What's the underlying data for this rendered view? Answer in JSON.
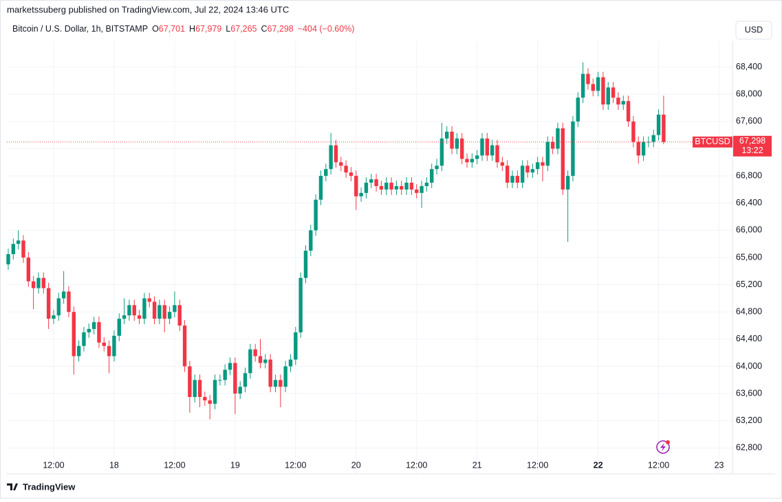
{
  "header": {
    "published": "marketssuberg published on TradingView.com, Jul 22, 2024 13:46 UTC",
    "symbol": "Bitcoin / U.S. Dollar, 1h, BITSTAMP",
    "legend": [
      {
        "key": "O",
        "value": "67,701"
      },
      {
        "key": "H",
        "value": "67,979"
      },
      {
        "key": "L",
        "value": "67,265"
      },
      {
        "key": "C",
        "value": "67,298"
      }
    ],
    "change": "−404 (−0.60%)",
    "currency": "USD"
  },
  "price_tag": {
    "symbol": "BTCUSD",
    "price": "67,298",
    "countdown": "13:22"
  },
  "footer": "TradingView",
  "chart_data": {
    "type": "candlestick",
    "up_color": "#089981",
    "down_color": "#f23645",
    "categories": [
      null,
      null,
      null,
      null,
      null,
      null,
      null,
      null,
      null,
      "12:00",
      null,
      null,
      null,
      null,
      null,
      null,
      null,
      null,
      null,
      null,
      null,
      "18",
      null,
      null,
      null,
      null,
      null,
      null,
      null,
      null,
      null,
      null,
      null,
      "12:00",
      null,
      null,
      null,
      null,
      null,
      null,
      null,
      null,
      null,
      null,
      null,
      "19",
      null,
      null,
      null,
      null,
      null,
      null,
      null,
      null,
      null,
      null,
      null,
      "12:00",
      null,
      null,
      null,
      null,
      null,
      null,
      null,
      null,
      null,
      null,
      null,
      "20",
      null,
      null,
      null,
      null,
      null,
      null,
      null,
      null,
      null,
      null,
      null,
      "12:00",
      null,
      null,
      null,
      null,
      null,
      null,
      null,
      null,
      null,
      null,
      null,
      "21",
      null,
      null,
      null,
      null,
      null,
      null,
      null,
      null,
      null,
      null,
      null,
      "12:00",
      null,
      null,
      null,
      null,
      null,
      null,
      null,
      null,
      null,
      null,
      null,
      "22",
      null,
      null,
      null,
      null,
      null,
      null,
      null,
      null,
      null,
      null,
      null,
      "12:00",
      null,
      null,
      null,
      null,
      null,
      null,
      null,
      null,
      null,
      null,
      null,
      "23"
    ],
    "open": [
      65500,
      65650,
      65800,
      65850,
      65600,
      65250,
      65150,
      65300,
      65150,
      64700,
      64750,
      65000,
      65100,
      64800,
      64150,
      64300,
      64500,
      64550,
      64650,
      64350,
      64300,
      64150,
      64450,
      64700,
      64750,
      64900,
      64750,
      64700,
      65000,
      64950,
      64700,
      64900,
      64700,
      64800,
      64900,
      64600,
      64000,
      63550,
      63800,
      63550,
      63500,
      63450,
      63800,
      63800,
      63950,
      64050,
      63600,
      63700,
      63900,
      64250,
      64150,
      64050,
      64100,
      63700,
      63800,
      63700,
      64000,
      64100,
      64500,
      65300,
      65700,
      66000,
      66450,
      66800,
      66900,
      67250,
      67000,
      66950,
      66850,
      66800,
      66500,
      66550,
      66700,
      66750,
      66650,
      66600,
      66700,
      66600,
      66650,
      66600,
      66700,
      66600,
      66550,
      66650,
      66700,
      66900,
      66950,
      67350,
      67450,
      67200,
      67350,
      67050,
      67000,
      67050,
      67100,
      67350,
      67100,
      67250,
      67000,
      66950,
      66700,
      66800,
      66700,
      66950,
      66850,
      66900,
      67000,
      66950,
      67300,
      67200,
      67500,
      66600,
      66800,
      67600,
      67950,
      68300,
      68150,
      68050,
      68250,
      67850,
      68100,
      67950,
      67850,
      67900,
      67600,
      67300,
      67100,
      67300,
      67300,
      67400,
      67701,
      null,
      null,
      null,
      null,
      null,
      null,
      null,
      null,
      null,
      null,
      null
    ],
    "high": [
      65730,
      65880,
      66000,
      65930,
      65680,
      65330,
      65380,
      65380,
      65230,
      64830,
      65080,
      65400,
      65180,
      64880,
      64380,
      64580,
      64630,
      64730,
      64730,
      64430,
      64380,
      64530,
      64780,
      65000,
      64980,
      64980,
      64830,
      65080,
      65080,
      65030,
      64980,
      64980,
      64880,
      65100,
      64980,
      64680,
      64080,
      63880,
      63880,
      63630,
      63580,
      63880,
      63880,
      64030,
      64130,
      64130,
      63780,
      63980,
      64330,
      64330,
      64400,
      64180,
      64180,
      63880,
      63880,
      64080,
      64180,
      64580,
      65380,
      65780,
      66080,
      66530,
      66880,
      66980,
      67430,
      67330,
      67080,
      67030,
      66930,
      66880,
      66630,
      66780,
      66830,
      66830,
      66730,
      66780,
      66780,
      66730,
      66730,
      66780,
      66780,
      66680,
      66730,
      66780,
      66980,
      67050,
      67580,
      67530,
      67530,
      67430,
      67430,
      67130,
      67130,
      67180,
      67430,
      67430,
      67330,
      67330,
      67080,
      67030,
      66880,
      66880,
      67030,
      67030,
      66980,
      67080,
      67080,
      67380,
      67380,
      67580,
      67580,
      66880,
      67680,
      68030,
      68470,
      68380,
      68230,
      68330,
      68330,
      68180,
      68180,
      68030,
      67980,
      67980,
      67680,
      67380,
      67380,
      67380,
      67480,
      67780,
      67979,
      null,
      null,
      null,
      null,
      null,
      null,
      null,
      null,
      null,
      null,
      null
    ],
    "low": [
      65420,
      65570,
      65720,
      65520,
      65170,
      64840,
      65070,
      65070,
      64550,
      64620,
      64670,
      64920,
      64720,
      63880,
      64070,
      64220,
      64420,
      64470,
      64270,
      64220,
      63900,
      64070,
      64370,
      64620,
      64670,
      64670,
      64620,
      64620,
      64870,
      64620,
      64620,
      64500,
      64620,
      64720,
      64520,
      63920,
      63320,
      63470,
      63400,
      63420,
      63220,
      63370,
      63720,
      63720,
      63870,
      63300,
      63520,
      63620,
      63820,
      64070,
      63970,
      63970,
      63620,
      63620,
      63400,
      63620,
      63920,
      64020,
      64420,
      65220,
      65620,
      65920,
      66370,
      66720,
      66820,
      66920,
      66870,
      66770,
      66720,
      66300,
      66420,
      66470,
      66620,
      66570,
      66520,
      66520,
      66520,
      66520,
      66520,
      66520,
      66520,
      66470,
      66330,
      66570,
      66620,
      66820,
      66870,
      67270,
      67120,
      67120,
      66970,
      66920,
      66920,
      66970,
      67020,
      67020,
      67020,
      66920,
      66870,
      66620,
      66620,
      66620,
      66620,
      66770,
      66770,
      66820,
      66720,
      66870,
      67120,
      67120,
      66520,
      65830,
      66720,
      67520,
      67870,
      68070,
      67970,
      67970,
      67770,
      67770,
      67870,
      67770,
      67770,
      67520,
      67220,
      66980,
      67020,
      67220,
      67220,
      67320,
      67265,
      null,
      null,
      null,
      null,
      null,
      null,
      null,
      null,
      null,
      null,
      null
    ],
    "close": [
      65650,
      65800,
      65850,
      65600,
      65250,
      65150,
      65300,
      65150,
      64700,
      64750,
      65000,
      65100,
      64800,
      64150,
      64300,
      64500,
      64550,
      64650,
      64350,
      64300,
      64150,
      64450,
      64700,
      64750,
      64900,
      64750,
      64700,
      65000,
      64950,
      64700,
      64900,
      64700,
      64800,
      64900,
      64600,
      64000,
      63550,
      63800,
      63550,
      63500,
      63450,
      63800,
      63800,
      63950,
      64050,
      63600,
      63700,
      63900,
      64250,
      64150,
      64050,
      64100,
      63700,
      63800,
      63700,
      64000,
      64100,
      64500,
      65300,
      65700,
      66000,
      66450,
      66800,
      66900,
      67250,
      67000,
      66950,
      66850,
      66800,
      66500,
      66550,
      66700,
      66750,
      66650,
      66600,
      66700,
      66600,
      66650,
      66600,
      66700,
      66600,
      66550,
      66650,
      66700,
      66900,
      66950,
      67350,
      67450,
      67200,
      67350,
      67050,
      67000,
      67050,
      67100,
      67350,
      67100,
      67250,
      67000,
      66950,
      66700,
      66800,
      66700,
      66950,
      66850,
      66900,
      67000,
      66950,
      67300,
      67200,
      67500,
      66600,
      66800,
      67600,
      67950,
      68300,
      68150,
      68050,
      68250,
      67850,
      68100,
      67950,
      67850,
      67900,
      67600,
      67300,
      67100,
      67300,
      67300,
      67400,
      67701,
      67298,
      null,
      null,
      null,
      null,
      null,
      null,
      null,
      null,
      null,
      null,
      null
    ],
    "ylim": [
      62420,
      68780
    ],
    "yticks": [
      {
        "value": 62800,
        "label": "62,800"
      },
      {
        "value": 63200,
        "label": "63,200"
      },
      {
        "value": 63600,
        "label": "63,600"
      },
      {
        "value": 64000,
        "label": "64,000"
      },
      {
        "value": 64400,
        "label": "64,400"
      },
      {
        "value": 64800,
        "label": "64,800"
      },
      {
        "value": 65200,
        "label": "65,200"
      },
      {
        "value": 65600,
        "label": "65,600"
      },
      {
        "value": 66000,
        "label": "66,000"
      },
      {
        "value": 66400,
        "label": "66,400"
      },
      {
        "value": 66800,
        "label": "66,800"
      },
      {
        "value": 67200,
        "label": "67,200"
      },
      {
        "value": 67600,
        "label": "67,600"
      },
      {
        "value": 68000,
        "label": "68,000"
      },
      {
        "value": 68400,
        "label": "68,400"
      }
    ],
    "grid": true
  }
}
